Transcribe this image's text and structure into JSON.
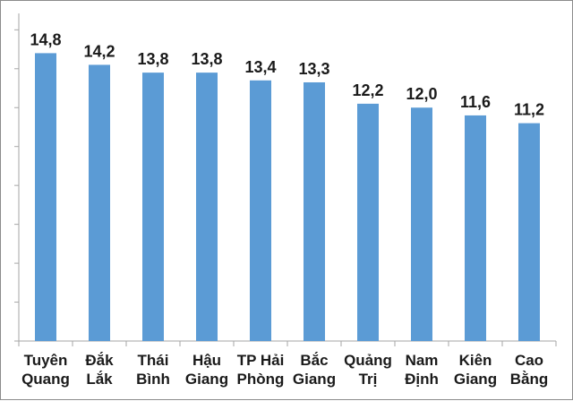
{
  "chart_data": {
    "type": "bar",
    "title": "",
    "xlabel": "",
    "ylabel": "",
    "categories": [
      [
        "Tuyên",
        "Quang"
      ],
      [
        "Đắk",
        "Lắk"
      ],
      [
        "Thái",
        "Bình"
      ],
      [
        "Hậu",
        "Giang"
      ],
      [
        "TP Hải",
        "Phòng"
      ],
      [
        "Bắc",
        "Giang"
      ],
      [
        "Quảng",
        "Trị"
      ],
      [
        "Nam",
        "Định"
      ],
      [
        "Kiên",
        "Giang"
      ],
      [
        "Cao",
        "Bằng"
      ]
    ],
    "values": [
      14.8,
      14.2,
      13.8,
      13.8,
      13.4,
      13.3,
      12.2,
      12.0,
      11.6,
      11.2
    ],
    "data_labels": [
      "14,8",
      "14,2",
      "13,8",
      "13,8",
      "13,4",
      "13,3",
      "12,2",
      "12,0",
      "11,6",
      "11,2"
    ],
    "ylim": [
      0,
      16
    ],
    "grid": false,
    "legend": "none",
    "colors": {
      "bar": "#5b9bd5",
      "axis": "#a6a6a6",
      "text": "#1a1a1a"
    }
  }
}
